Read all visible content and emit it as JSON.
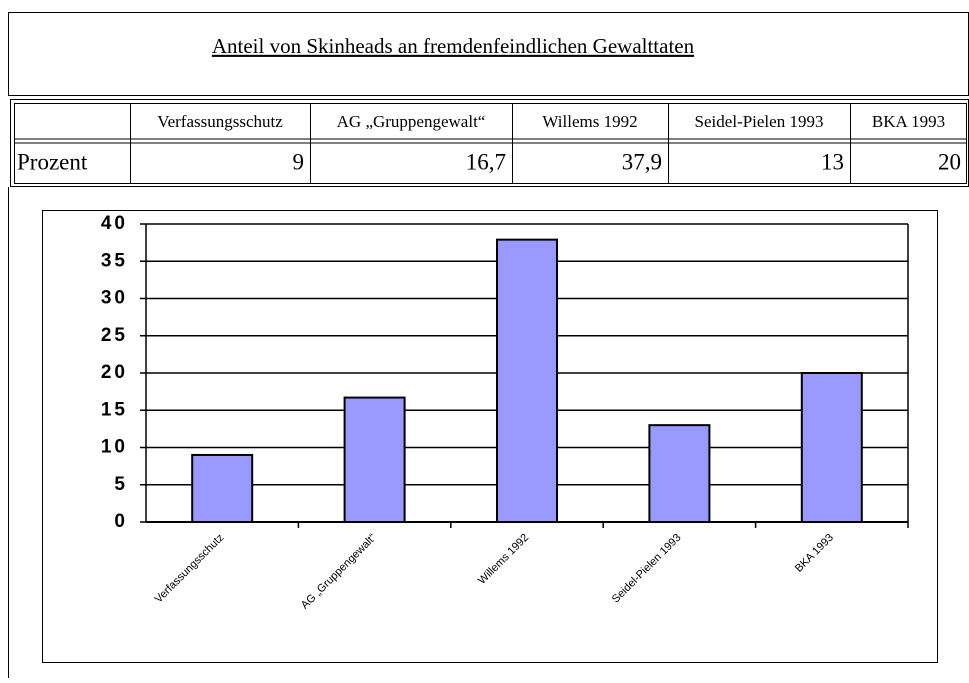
{
  "title": "Anteil von Skinheads an fremdenfeindlichen Gewalttaten",
  "table": {
    "header": [
      "Verfassungsschutz",
      "AG „Gruppengewalt“",
      "Willems 1992",
      "Seidel-Pielen 1993",
      "BKA 1993"
    ],
    "row_label": "Prozent",
    "row": [
      "9",
      "16,7",
      "37,9",
      "13",
      "20"
    ]
  },
  "chart_data": {
    "type": "bar",
    "categories": [
      "Verfassungsschutz",
      "AG „Gruppengewalt“",
      "Willems 1992",
      "Seidel-Pielen 1993",
      "BKA 1993"
    ],
    "values": [
      9,
      16.7,
      37.9,
      13,
      20
    ],
    "color": "#9999ff",
    "ylim": [
      0,
      40
    ],
    "yticks": [
      0,
      5,
      10,
      15,
      20,
      25,
      30,
      35,
      40
    ],
    "grid": true
  }
}
